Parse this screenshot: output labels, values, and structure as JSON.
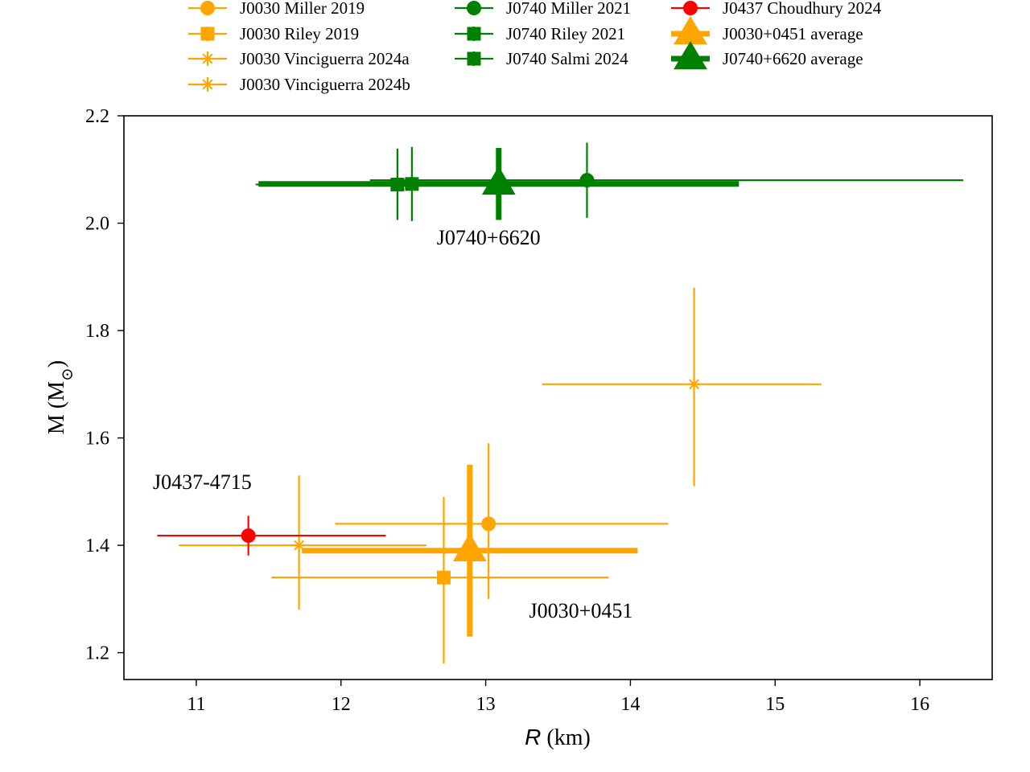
{
  "chart_data": {
    "type": "scatter",
    "xlabel_italic": "R",
    "xlabel_rest": " (km)",
    "ylabel_main": "M (M",
    "ylabel_sub": "⊙",
    "ylabel_close": ")",
    "xlim": [
      10.5,
      16.5
    ],
    "ylim": [
      1.15,
      2.2
    ],
    "xticks": [
      11,
      12,
      13,
      14,
      15,
      16
    ],
    "yticks": [
      1.2,
      1.4,
      1.6,
      1.8,
      2.0,
      2.2
    ],
    "xtick_labels": [
      "11",
      "12",
      "13",
      "14",
      "15",
      "16"
    ],
    "ytick_labels": [
      "1.2",
      "1.4",
      "1.6",
      "1.8",
      "2.0",
      "2.2"
    ],
    "grid": false,
    "legend_position": "top, above plot, 3 columns",
    "colors": {
      "J0030": "#FFA500",
      "J0740": "#008000",
      "J0437": "#FF0000"
    },
    "series": [
      {
        "name": "J0030 Miller 2019",
        "color": "#FFA500",
        "marker": "circle",
        "weight": "thin",
        "x": 13.02,
        "y": 1.44,
        "x_err": [
          1.06,
          1.24
        ],
        "y_err": [
          0.14,
          0.15
        ]
      },
      {
        "name": "J0030 Riley 2019",
        "color": "#FFA500",
        "marker": "square",
        "weight": "thin",
        "x": 12.71,
        "y": 1.34,
        "x_err": [
          1.19,
          1.14
        ],
        "y_err": [
          0.16,
          0.15
        ]
      },
      {
        "name": "J0030 Vinciguerra 2024a",
        "color": "#FFA500",
        "marker": "star",
        "weight": "thin",
        "x": 11.71,
        "y": 1.4,
        "x_err": [
          0.83,
          0.88
        ],
        "y_err": [
          0.12,
          0.13
        ]
      },
      {
        "name": "J0030 Vinciguerra 2024b",
        "color": "#FFA500",
        "marker": "star",
        "weight": "thin",
        "x": 14.44,
        "y": 1.7,
        "x_err": [
          1.05,
          0.88
        ],
        "y_err": [
          0.19,
          0.18
        ]
      },
      {
        "name": "J0740 Miller 2021",
        "color": "#008000",
        "marker": "circle",
        "weight": "thin",
        "x": 13.7,
        "y": 2.08,
        "x_err": [
          1.5,
          2.6
        ],
        "y_err": [
          0.07,
          0.07
        ]
      },
      {
        "name": "J0740 Riley 2021",
        "color": "#008000",
        "marker": "square",
        "weight": "thin",
        "x": 12.39,
        "y": 2.072,
        "x_err": [
          0.98,
          1.3
        ],
        "y_err": [
          0.066,
          0.067
        ]
      },
      {
        "name": "J0740 Salmi 2024",
        "color": "#008000",
        "marker": "square",
        "weight": "thin",
        "x": 12.49,
        "y": 2.073,
        "x_err": [
          0.88,
          1.28
        ],
        "y_err": [
          0.069,
          0.069
        ]
      },
      {
        "name": "J0437 Choudhury 2024",
        "color": "#FF0000",
        "marker": "circle",
        "weight": "thin",
        "x": 11.36,
        "y": 1.418,
        "x_err": [
          0.63,
          0.95
        ],
        "y_err": [
          0.037,
          0.037
        ]
      },
      {
        "name": "J0030+0451 average",
        "color": "#FFA500",
        "marker": "triangle",
        "weight": "thick",
        "x": 12.89,
        "y": 1.39,
        "x_err": [
          1.16,
          1.16
        ],
        "y_err": [
          0.16,
          0.16
        ]
      },
      {
        "name": "J0740+6620 average",
        "color": "#008000",
        "marker": "triangle",
        "weight": "thick",
        "x": 13.09,
        "y": 2.073,
        "x_err": [
          1.66,
          1.66
        ],
        "y_err": [
          0.067,
          0.067
        ]
      }
    ],
    "annotations": [
      {
        "text": "J0740+6620",
        "x": 13.02,
        "y": 1.96
      },
      {
        "text": "J0437-4715",
        "x": 10.7,
        "y": 1.505
      },
      {
        "text": "J0030+0451",
        "x": 13.3,
        "y": 1.265
      }
    ]
  }
}
